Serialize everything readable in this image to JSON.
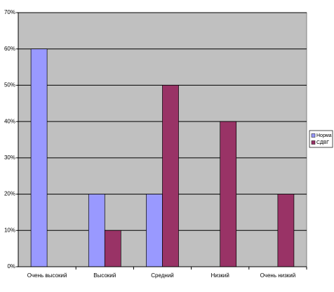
{
  "chart_data": {
    "type": "bar",
    "categories": [
      "Очень высокий",
      "Высокий",
      "Средний",
      "Низкий",
      "Очень низкий"
    ],
    "series": [
      {
        "name": "Норма",
        "color": "#9999ff",
        "values": [
          60,
          20,
          20,
          0,
          0
        ]
      },
      {
        "name": "СДВГ",
        "color": "#993366",
        "values": [
          0,
          10,
          50,
          40,
          20
        ]
      }
    ],
    "ylim": [
      0,
      70
    ],
    "yticks": [
      {
        "value": 0,
        "label": "0%"
      },
      {
        "value": 10,
        "label": "10%"
      },
      {
        "value": 20,
        "label": "20%"
      },
      {
        "value": 30,
        "label": "30%"
      },
      {
        "value": 40,
        "label": "40%"
      },
      {
        "value": 50,
        "label": "50%"
      },
      {
        "value": 60,
        "label": "60%"
      },
      {
        "value": 70,
        "label": "70%"
      }
    ],
    "grid": true,
    "legend": "right"
  }
}
